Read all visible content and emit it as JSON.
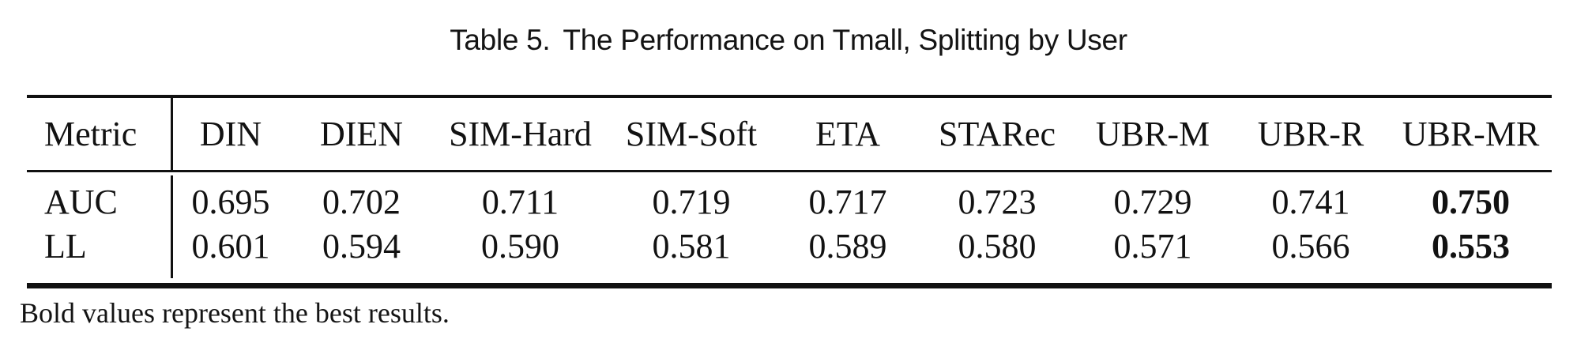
{
  "caption": {
    "label": "Table 5.",
    "title": "The Performance on Tmall, Splitting by User"
  },
  "table": {
    "metric_header": "Metric",
    "columns": [
      "DIN",
      "DIEN",
      "SIM-Hard",
      "SIM-Soft",
      "ETA",
      "STARec",
      "UBR-M",
      "UBR-R",
      "UBR-MR"
    ],
    "rows": [
      {
        "metric": "AUC",
        "values": [
          "0.695",
          "0.702",
          "0.711",
          "0.719",
          "0.717",
          "0.723",
          "0.729",
          "0.741",
          "0.750"
        ],
        "best_value": "0.750",
        "best_column": "UBR-MR"
      },
      {
        "metric": "LL",
        "values": [
          "0.601",
          "0.594",
          "0.590",
          "0.581",
          "0.589",
          "0.580",
          "0.571",
          "0.566",
          "0.553"
        ],
        "best_value": "0.553",
        "best_column": "UBR-MR"
      }
    ]
  },
  "footnote": "Bold values represent the best results.",
  "colors": {
    "text": "#121212",
    "rule": "#111111",
    "background": "#ffffff"
  }
}
